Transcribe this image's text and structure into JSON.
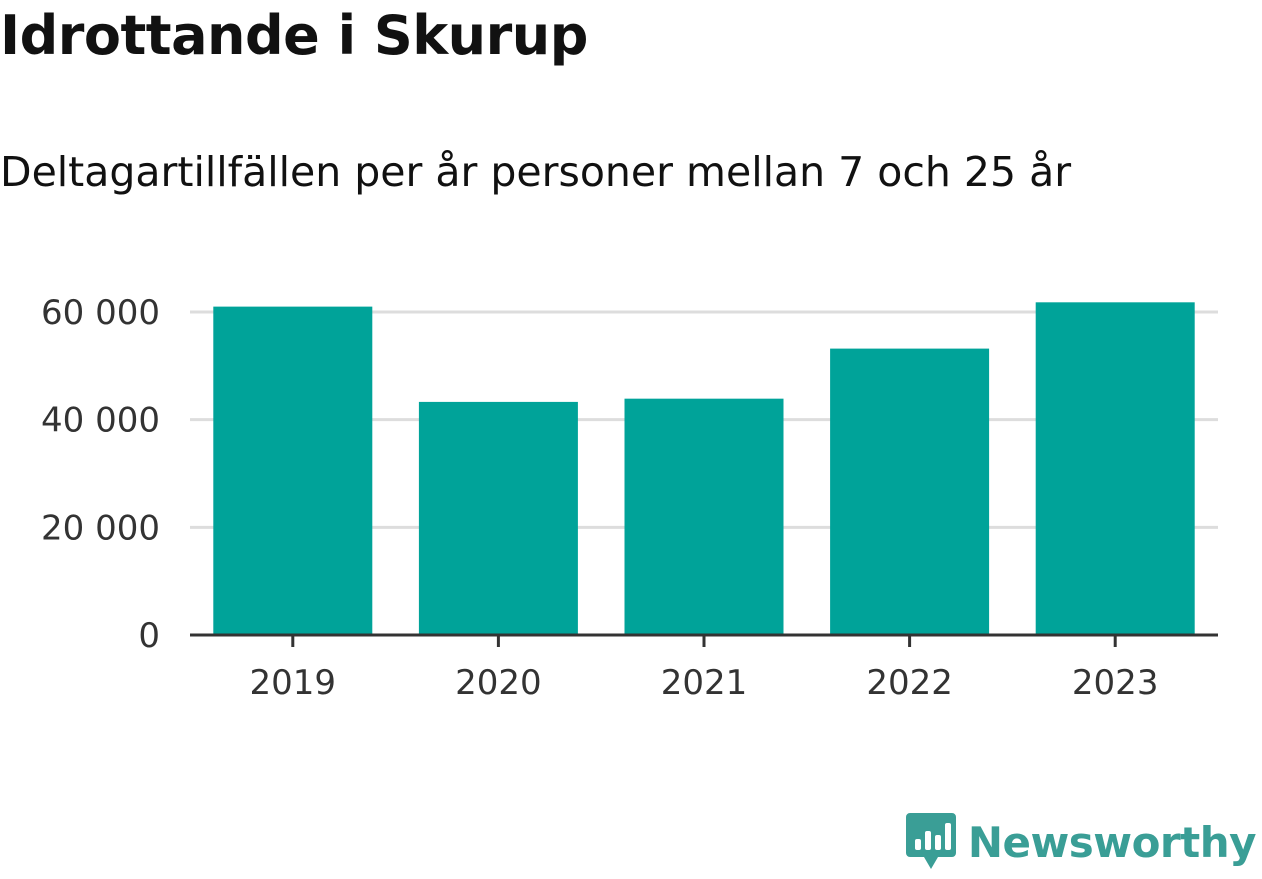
{
  "header": {
    "title": "Idrottande i Skurup",
    "subtitle": "Deltagartillfällen per år personer mellan 7 och 25 år"
  },
  "brand": {
    "name": "Newsworthy",
    "icon": "newsworthy-logo-icon",
    "color": "#3a9e96"
  },
  "colors": {
    "bar": "#00a399",
    "grid": "#dddddd",
    "axis": "#333333"
  },
  "chart_data": {
    "type": "bar",
    "title": "Idrottande i Skurup",
    "subtitle": "Deltagartillfällen per år personer mellan 7 och 25 år",
    "xlabel": "",
    "ylabel": "",
    "categories": [
      "2019",
      "2020",
      "2021",
      "2022",
      "2023"
    ],
    "values": [
      61000,
      43300,
      43900,
      53200,
      61800
    ],
    "ylim": [
      0,
      60000
    ],
    "yticks": [
      0,
      20000,
      40000,
      60000
    ],
    "ytick_labels": [
      "0",
      "20 000",
      "40 000",
      "60 000"
    ],
    "grid": true,
    "legend": "none"
  }
}
